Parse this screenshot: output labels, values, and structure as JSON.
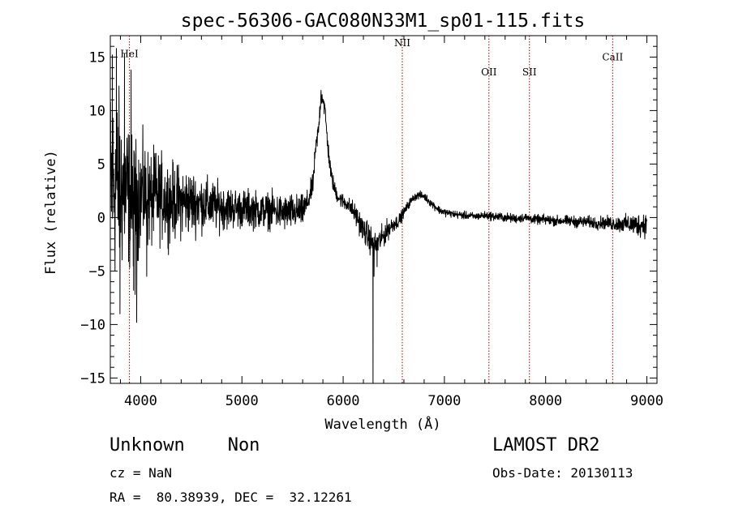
{
  "chart_data": {
    "type": "line",
    "title": "spec-56306-GAC080N33M1_sp01-115.fits",
    "xlabel": "Wavelength (Å)",
    "ylabel": "Flux (relative)",
    "xlim": [
      3700,
      9100
    ],
    "ylim": [
      -15.5,
      17
    ],
    "xticks": [
      4000,
      5000,
      6000,
      7000,
      8000,
      9000
    ],
    "xtick_labels": [
      "4000",
      "5000",
      "6000",
      "7000",
      "8000",
      "9000"
    ],
    "yticks": [
      -15,
      -10,
      -5,
      0,
      5,
      10,
      15
    ],
    "ytick_labels": [
      "−15",
      "−10",
      "−5",
      "0",
      "5",
      "10",
      "15"
    ],
    "grid": false,
    "line_color": "#000000",
    "marker_color": "#990000",
    "spectral_lines": [
      {
        "name": "HeI",
        "wavelength": 3889,
        "label_y": 15
      },
      {
        "name": "NII",
        "wavelength": 6584,
        "label_y": 16
      },
      {
        "name": "OII",
        "wavelength": 7440,
        "label_y": 13.3
      },
      {
        "name": "SII",
        "wavelength": 7840,
        "label_y": 13.3
      },
      {
        "name": "CaII",
        "wavelength": 8662,
        "label_y": 14.7
      }
    ],
    "series": [
      {
        "x": [
          3700,
          3760,
          3800,
          3860,
          3920,
          3960,
          4020,
          4100,
          4200,
          4300,
          4400,
          4500,
          4600,
          4700,
          4800,
          4900,
          5000,
          5100,
          5200,
          5300,
          5400,
          5500,
          5600,
          5650,
          5700,
          5730,
          5760,
          5780,
          5800,
          5820,
          5850,
          5880,
          5920,
          5960,
          6000,
          6050,
          6100,
          6150,
          6200,
          6250,
          6280,
          6300,
          6320,
          6350,
          6400,
          6450,
          6500,
          6550,
          6600,
          6650,
          6700,
          6750,
          6800,
          6850,
          6900,
          6950,
          7000,
          7100,
          7200,
          7300,
          7400,
          7500,
          7600,
          7700,
          7800,
          7900,
          8000,
          8100,
          8200,
          8300,
          8400,
          8500,
          8600,
          8700,
          8800,
          8900,
          9000
        ],
        "y": [
          3.0,
          3.2,
          3.0,
          2.5,
          1.2,
          1.8,
          2.2,
          1.6,
          1.9,
          1.5,
          1.5,
          1.4,
          1.3,
          1.1,
          1.0,
          0.9,
          0.8,
          0.8,
          0.6,
          0.7,
          0.4,
          0.5,
          0.6,
          1.4,
          3.0,
          6.5,
          8.5,
          11.5,
          11.2,
          10.0,
          6.5,
          4.0,
          2.5,
          1.8,
          1.5,
          1.2,
          0.6,
          -0.2,
          -1.2,
          -1.8,
          -2.2,
          -2.8,
          -2.6,
          -2.3,
          -1.7,
          -1.0,
          -0.6,
          -0.3,
          0.5,
          1.3,
          1.9,
          2.1,
          2.0,
          1.5,
          1.1,
          0.7,
          0.5,
          0.3,
          0.2,
          0.1,
          0.2,
          0.1,
          0.0,
          -0.1,
          0.0,
          -0.2,
          -0.2,
          -0.3,
          -0.3,
          -0.4,
          -0.4,
          -0.5,
          -0.5,
          -0.6,
          -0.6,
          -0.7,
          -0.6
        ],
        "noise_amplitude": [
          8.0,
          7.5,
          7.0,
          6.0,
          5.0,
          4.6,
          4.2,
          3.8,
          3.4,
          3.0,
          2.8,
          2.5,
          2.2,
          2.0,
          1.8,
          1.6,
          1.5,
          1.5,
          1.4,
          1.4,
          1.4,
          1.4,
          1.2,
          1.0,
          0.9,
          0.8,
          0.8,
          0.8,
          0.8,
          0.8,
          0.8,
          0.7,
          0.6,
          0.6,
          0.6,
          0.6,
          0.8,
          0.9,
          1.0,
          1.1,
          1.1,
          1.0,
          1.0,
          1.0,
          0.9,
          0.8,
          0.6,
          0.5,
          0.4,
          0.35,
          0.3,
          0.3,
          0.3,
          0.3,
          0.3,
          0.3,
          0.3,
          0.3,
          0.3,
          0.3,
          0.3,
          0.35,
          0.35,
          0.35,
          0.35,
          0.35,
          0.4,
          0.4,
          0.4,
          0.45,
          0.45,
          0.5,
          0.5,
          0.6,
          0.7,
          0.9,
          1.0
        ]
      }
    ],
    "spikes": [
      {
        "x": 3720,
        "y": 15.2
      },
      {
        "x": 3760,
        "y": 15.8
      },
      {
        "x": 3795,
        "y": -9.0
      },
      {
        "x": 3840,
        "y": 15.3
      },
      {
        "x": 3905,
        "y": 13.8
      },
      {
        "x": 3930,
        "y": -6.8
      },
      {
        "x": 3945,
        "y": -7.2
      },
      {
        "x": 3960,
        "y": -9.8
      },
      {
        "x": 4060,
        "y": -5.5
      },
      {
        "x": 4140,
        "y": 6.0
      },
      {
        "x": 6295,
        "y": -15.5
      },
      {
        "x": 6305,
        "y": -5.5
      },
      {
        "x": 6335,
        "y": -4.6
      }
    ]
  },
  "info": {
    "classification": "Unknown    Non",
    "survey": "LAMOST DR2",
    "redshift": "cz = NaN",
    "obs_date": "Obs-Date: 20130113",
    "coords": "RA =  80.38939, DEC =  32.12261"
  }
}
